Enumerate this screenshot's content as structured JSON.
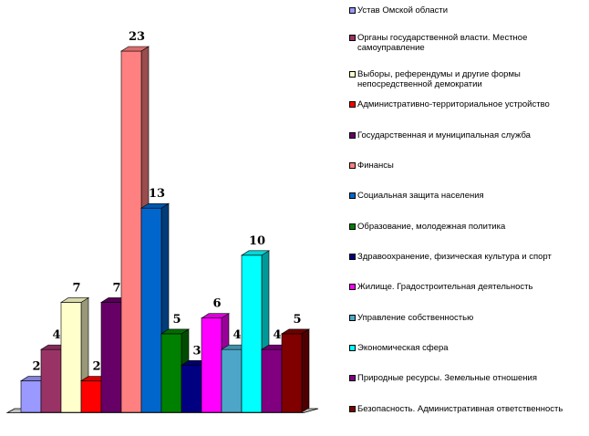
{
  "chart_data": {
    "type": "bar",
    "categories": [
      "Устав Омской области",
      "Органы государственной власти. Местное самоуправление",
      "Выборы, референдумы и другие формы непосредственной демократии",
      "Административно-территориальное устройство",
      "Государственная и муниципальная служба",
      "Финансы",
      "Социальная защита населения",
      "Образование, молодежная политика",
      "Здравоохранение, физическая культура и спорт",
      "Жилище. Градостроительная деятельность",
      "Управление собственностью",
      "Экономическая сфера",
      "Природные ресурсы. Земельные отношения",
      "Безопасность. Административная ответственность"
    ],
    "values": [
      2,
      4,
      7,
      2,
      7,
      23,
      13,
      5,
      3,
      6,
      4,
      10,
      4,
      5
    ],
    "value_labels": [
      "2",
      "4",
      "7",
      "2",
      "7",
      "23",
      "13",
      "5",
      "3",
      "6",
      "4",
      "10",
      "4",
      "5"
    ],
    "colors": [
      "#9999ff",
      "#993366",
      "#ffffcc",
      "#ff0000",
      "#660066",
      "#ff8080",
      "#0066cc",
      "#008000",
      "#000080",
      "#ff00ff",
      "#4da6c8",
      "#00ffff",
      "#800080",
      "#800000"
    ],
    "legend_placement": "right",
    "grid": false,
    "ylim": [
      0,
      23
    ]
  }
}
